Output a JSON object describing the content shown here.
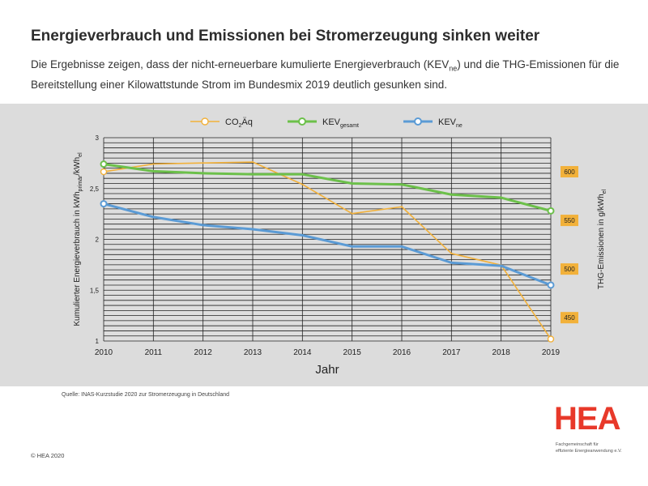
{
  "title": "Energieverbrauch und Emissionen bei Stromerzeugung sinken weiter",
  "subtitle_parts": {
    "a": "Die Ergebnisse zeigen, dass der nicht-erneuerbare kumulierte Energieverbrauch (KEV",
    "a_sub": "ne",
    "b": ") und die THG-Emissionen für die Bereitstellung einer Kilowattstunde Strom im Bundesmix 2019 deutlich gesunken sind."
  },
  "source": "Quelle: INAS-Kurzstudie 2020 zur Stromerzeugung in Deutschland",
  "copyright": "© HEA 2020",
  "logo": {
    "text": "HEA",
    "line1": "Fachgemeinschaft für",
    "line2": "effiziente Energieanwendung e.V."
  },
  "colors": {
    "co2": "#f2b13a",
    "kev_gesamt": "#6cc04a",
    "kev_ne": "#5b9bd5",
    "axis_badge": "#f2b13a",
    "logo": "#e8392a"
  },
  "chart_data": {
    "type": "line",
    "x": [
      2010,
      2011,
      2012,
      2013,
      2014,
      2015,
      2016,
      2017,
      2018,
      2019
    ],
    "xlabel": "Jahr",
    "ylabel_left": {
      "main": "Kumulierter Energieverbrauch  in kWh",
      "sub1": "primär",
      "mid": "/kWh",
      "sub2": "el"
    },
    "ylabel_right": {
      "main": "THG-Emissionen in g/kWh",
      "sub": "el"
    },
    "y_left": {
      "min": 1,
      "max": 3,
      "ticks": [
        "1",
        "1,5",
        "2",
        "2,5",
        "3"
      ]
    },
    "y_right": {
      "min": 426,
      "max": 635,
      "ticks": [
        "450",
        "500",
        "550",
        "600"
      ]
    },
    "legend_position": "top-center",
    "series": [
      {
        "name": "CO",
        "name_sub": "2",
        "name_suffix": "Äq",
        "key": "co2",
        "axis": "right",
        "values": [
          600,
          608,
          609,
          610,
          587,
          557,
          564,
          516,
          504,
          428
        ]
      },
      {
        "name": "KEV",
        "name_sub": "gesamt",
        "name_suffix": "",
        "key": "kev_gesamt",
        "axis": "left",
        "values": [
          2.74,
          2.67,
          2.65,
          2.64,
          2.64,
          2.55,
          2.54,
          2.44,
          2.41,
          2.28
        ]
      },
      {
        "name": "KEV",
        "name_sub": "ne",
        "name_suffix": "",
        "key": "kev_ne",
        "axis": "left",
        "values": [
          2.35,
          2.22,
          2.14,
          2.1,
          2.04,
          1.93,
          1.93,
          1.77,
          1.74,
          1.55
        ]
      }
    ]
  }
}
